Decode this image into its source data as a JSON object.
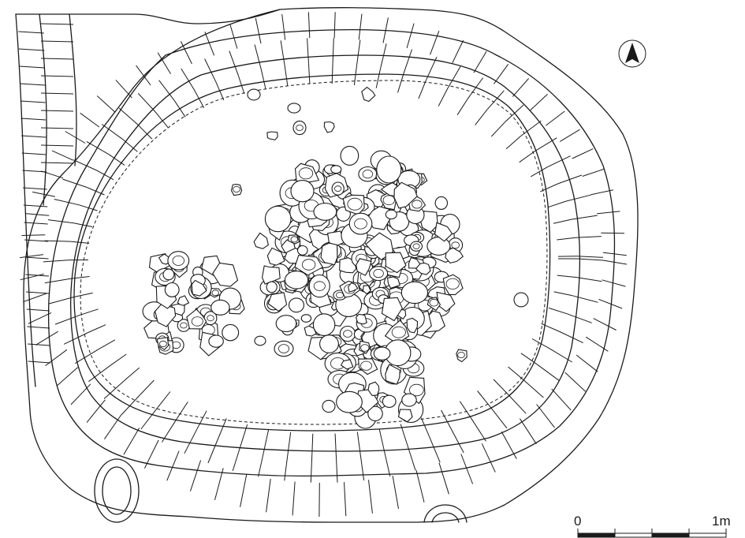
{
  "north_arrow": {
    "icon": "north-arrow-icon"
  },
  "scale_bar": {
    "start_label": "0",
    "end_label": "1m",
    "divisions": 4
  }
}
